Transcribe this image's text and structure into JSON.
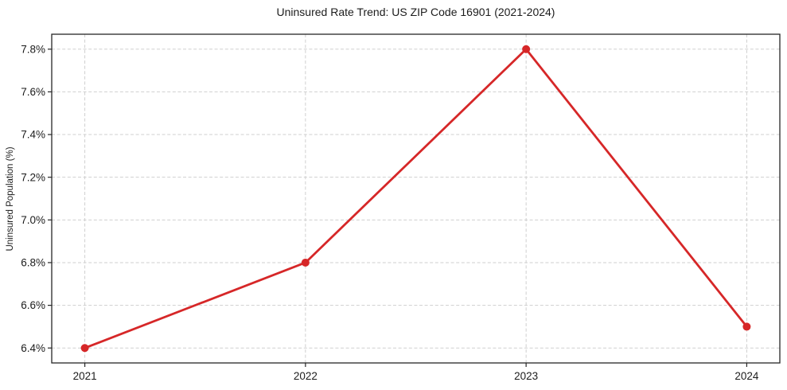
{
  "chart_data": {
    "type": "line",
    "title": "Uninsured Rate Trend: US ZIP Code 16901 (2021-2024)",
    "xlabel": "",
    "ylabel": "Uninsured Population (%)",
    "x": [
      2021,
      2022,
      2023,
      2024
    ],
    "values": [
      6.4,
      6.8,
      7.8,
      6.5
    ],
    "xticks": [
      2021,
      2022,
      2023,
      2024
    ],
    "xtick_labels": [
      "2021",
      "2022",
      "2023",
      "2024"
    ],
    "yticks": [
      6.4,
      6.6,
      6.8,
      7.0,
      7.2,
      7.4,
      7.6,
      7.8
    ],
    "ytick_labels": [
      "6.4%",
      "6.6%",
      "6.8%",
      "7.0%",
      "7.2%",
      "7.4%",
      "7.6%",
      "7.8%"
    ],
    "xlim": [
      2020.85,
      2024.15
    ],
    "ylim": [
      6.33,
      7.87
    ],
    "grid": true,
    "grid_style": "dashed",
    "legend_position": "none",
    "marker": "circle",
    "colors": {
      "line": "#d62728",
      "grid": "#cfcfcf",
      "spine": "#262626",
      "text": "#1c1c1c",
      "background": "#ffffff"
    }
  }
}
